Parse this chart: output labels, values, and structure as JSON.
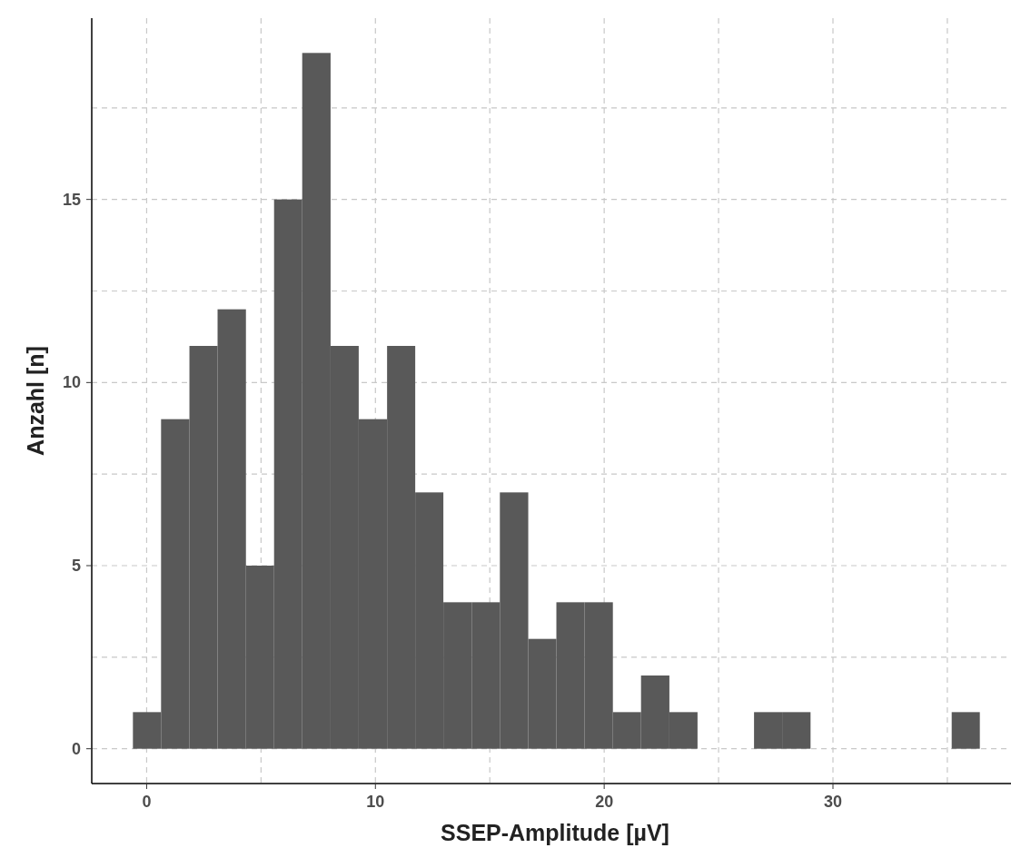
{
  "chart_data": {
    "type": "histogram",
    "xlabel": "SSEP-Amplitude [µV]",
    "ylabel": "Anzahl [n]",
    "color": "#595959",
    "bins": [
      -0.6,
      0.63,
      1.87,
      3.1,
      4.34,
      5.57,
      6.8,
      8.04,
      9.27,
      10.51,
      11.74,
      12.97,
      14.21,
      15.44,
      16.68,
      17.91,
      19.14,
      20.38,
      21.61,
      22.85,
      24.08,
      25.31,
      26.55,
      27.78,
      29.02,
      30.25,
      31.48,
      32.72,
      33.95,
      35.19,
      36.42
    ],
    "values": [
      1,
      9,
      11,
      12,
      5,
      15,
      19,
      11,
      9,
      11,
      7,
      4,
      4,
      7,
      3,
      4,
      4,
      1,
      2,
      1,
      0,
      0,
      1,
      1,
      0,
      0,
      0,
      0,
      0,
      1
    ],
    "xlim": [
      -2.4,
      38.1
    ],
    "ylim": [
      -0.95,
      19.95
    ],
    "xticks": [
      0,
      {
        "value": 5,
        "label": null
      },
      10,
      {
        "value": 15,
        "label": null
      },
      20,
      {
        "value": 25,
        "label": null
      },
      30,
      {
        "value": 35,
        "label": null
      }
    ],
    "yticks": [
      0,
      {
        "value": 2.5,
        "label": null
      },
      5,
      {
        "value": 7.5,
        "label": null
      },
      10,
      {
        "value": 12.5,
        "label": null
      },
      15,
      {
        "value": 17.5,
        "label": null
      }
    ],
    "grid": true
  }
}
